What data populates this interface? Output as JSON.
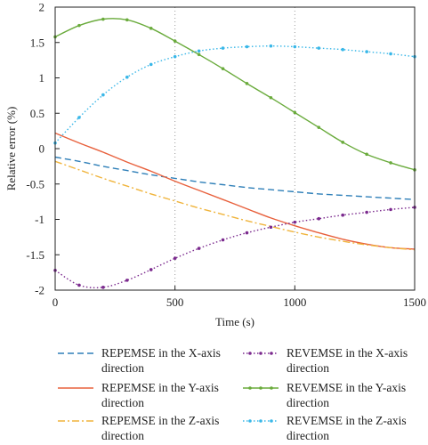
{
  "chart_data": {
    "type": "line",
    "title": "",
    "xlabel": "Time (s)",
    "ylabel": "Relative error (%)",
    "xlim": [
      0,
      1500
    ],
    "ylim": [
      -2,
      2
    ],
    "xticks": [
      "0",
      "500",
      "1000",
      "1500"
    ],
    "yticks": [
      "-2",
      "-1.5",
      "-1",
      "-0.5",
      "0",
      "0.5",
      "1",
      "1.5",
      "2"
    ],
    "grid": "dotted vertical at 500 and 1000",
    "legend_placement": "below",
    "x": [
      0,
      100,
      200,
      300,
      400,
      500,
      600,
      700,
      800,
      900,
      1000,
      1100,
      1200,
      1300,
      1400,
      1500
    ],
    "series": [
      {
        "name": "REPEMSE in the X-axis direction",
        "color": "#2e7fb8",
        "style": "dashed",
        "values": [
          -0.12,
          -0.18,
          -0.25,
          -0.31,
          -0.37,
          -0.42,
          -0.47,
          -0.51,
          -0.55,
          -0.58,
          -0.61,
          -0.64,
          -0.66,
          -0.68,
          -0.7,
          -0.72
        ]
      },
      {
        "name": "REPEMSE in the Y-axis direction",
        "color": "#e8603c",
        "style": "solid",
        "values": [
          0.22,
          0.08,
          -0.05,
          -0.19,
          -0.32,
          -0.46,
          -0.59,
          -0.72,
          -0.85,
          -0.98,
          -1.09,
          -1.19,
          -1.28,
          -1.35,
          -1.4,
          -1.42
        ]
      },
      {
        "name": "REPEMSE in the Z-axis direction",
        "color": "#f0b43c",
        "style": "dashdot",
        "values": [
          -0.18,
          -0.3,
          -0.42,
          -0.53,
          -0.64,
          -0.74,
          -0.84,
          -0.93,
          -1.02,
          -1.1,
          -1.18,
          -1.25,
          -1.31,
          -1.36,
          -1.4,
          -1.43
        ]
      },
      {
        "name": "REVEMSE in the X-axis direction",
        "color": "#7b2a8e",
        "style": "dotted-markers",
        "values": [
          -1.72,
          -1.93,
          -1.96,
          -1.86,
          -1.71,
          -1.55,
          -1.41,
          -1.29,
          -1.19,
          -1.11,
          -1.04,
          -0.99,
          -0.94,
          -0.9,
          -0.86,
          -0.83
        ]
      },
      {
        "name": "REVEMSE in the Y-axis direction",
        "color": "#6aab3c",
        "style": "solid-markers",
        "values": [
          1.58,
          1.74,
          1.83,
          1.82,
          1.7,
          1.52,
          1.33,
          1.13,
          0.92,
          0.72,
          0.51,
          0.3,
          0.09,
          -0.08,
          -0.2,
          -0.3
        ]
      },
      {
        "name": "REVEMSE in the Z-axis direction",
        "color": "#39b7e8",
        "style": "dotted-markers",
        "values": [
          0.08,
          0.44,
          0.76,
          1.01,
          1.19,
          1.3,
          1.38,
          1.42,
          1.44,
          1.45,
          1.44,
          1.42,
          1.4,
          1.37,
          1.34,
          1.3
        ]
      }
    ]
  }
}
